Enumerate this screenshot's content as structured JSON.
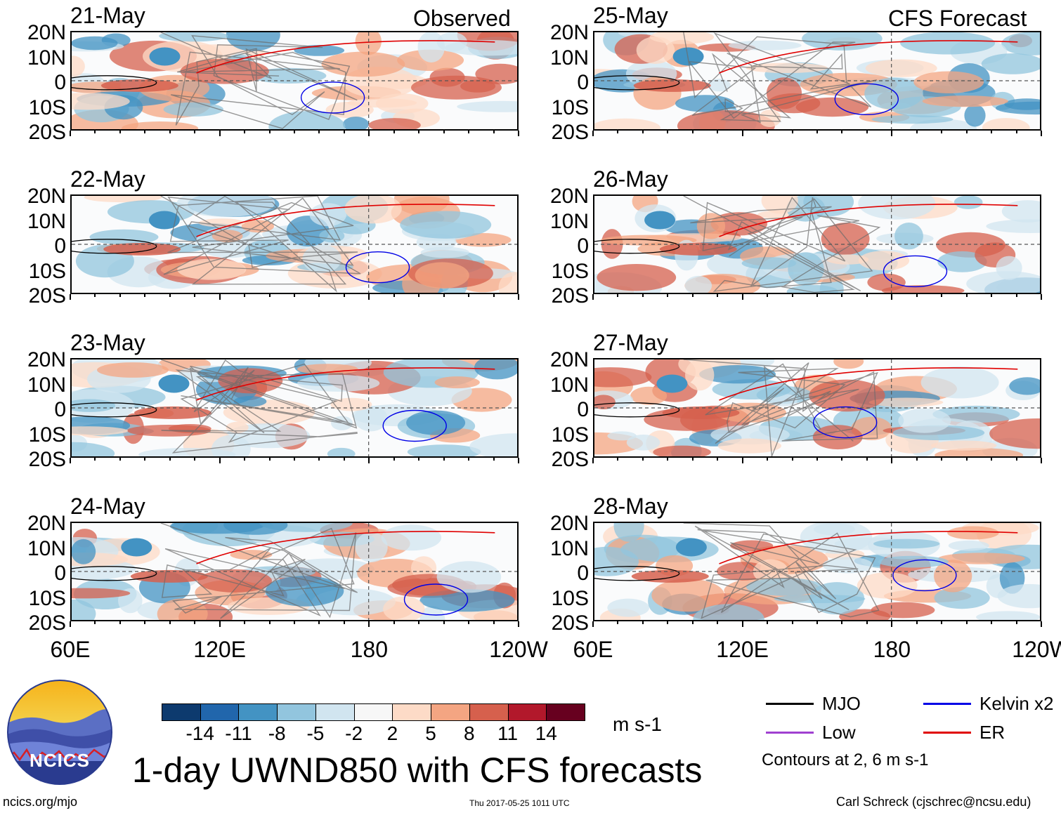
{
  "chart_data": {
    "type": "heatmap",
    "variable": "1-day UWND850",
    "title": "1-day UWND850 with CFS forecasts",
    "units": "m s-1",
    "columns": [
      {
        "label": "Observed",
        "dates": [
          "21-May",
          "22-May",
          "23-May",
          "24-May"
        ]
      },
      {
        "label": "CFS Forecast",
        "dates": [
          "25-May",
          "26-May",
          "27-May",
          "28-May"
        ]
      }
    ],
    "y_ticks": [
      "20N",
      "10N",
      "0",
      "10S",
      "20S"
    ],
    "x_ticks": [
      "60E",
      "120E",
      "180",
      "120W"
    ],
    "colorbar": {
      "levels": [
        "-14",
        "-11",
        "-8",
        "-5",
        "-2",
        "2",
        "5",
        "8",
        "11",
        "14"
      ],
      "colors": [
        "#0d3a6e",
        "#2166ac",
        "#4393c3",
        "#92c5de",
        "#d1e5f0",
        "#f7f7f7",
        "#fddbc7",
        "#f4a582",
        "#d6604d",
        "#b2182b",
        "#67001f"
      ]
    },
    "contour_legend": [
      {
        "label": "MJO",
        "color": "#000000"
      },
      {
        "label": "Kelvin x2",
        "color": "#0000e6"
      },
      {
        "label": "Low",
        "color": "#a040d0"
      },
      {
        "label": "ER",
        "color": "#e00000"
      }
    ],
    "contour_note": "Contours at 2, 6 m s-1"
  },
  "footer": {
    "site": "ncics.org/mjo",
    "timestamp": "Thu 2017-05-25 1011 UTC",
    "author": "Carl Schreck (cjschrec@ncsu.edu)"
  },
  "logo": {
    "text": "NCICS"
  }
}
